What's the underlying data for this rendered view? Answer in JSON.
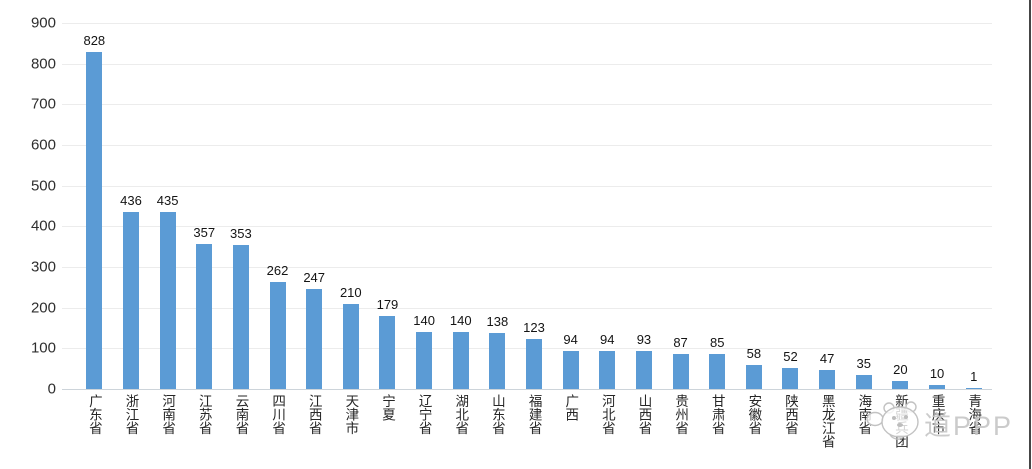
{
  "chart_data": {
    "type": "bar",
    "title": "",
    "xlabel": "",
    "ylabel": "",
    "categories": [
      "广东省",
      "浙江省",
      "河南省",
      "江苏省",
      "云南省",
      "四川省",
      "江西省",
      "天津市",
      "宁夏",
      "辽宁省",
      "湖北省",
      "山东省",
      "福建省",
      "广西",
      "河北省",
      "山西省",
      "贵州省",
      "甘肃省",
      "安徽省",
      "陕西省",
      "黑龙江省",
      "海南省",
      "新疆兵团",
      "重庆市",
      "青海省"
    ],
    "values": [
      828,
      436,
      435,
      357,
      353,
      262,
      247,
      210,
      179,
      140,
      140,
      138,
      123,
      94,
      94,
      93,
      87,
      85,
      58,
      52,
      47,
      35,
      20,
      10,
      1
    ],
    "ylim": [
      0,
      900
    ],
    "y_ticks": [
      0,
      100,
      200,
      300,
      400,
      500,
      600,
      700,
      800,
      900
    ],
    "grid": true,
    "legend": false,
    "data_labels": true,
    "bar_color": "#5B9BD5",
    "gridline_color": "#ececec",
    "baseline_color": "#cdd4da"
  },
  "watermark": {
    "text": "道PPP"
  }
}
